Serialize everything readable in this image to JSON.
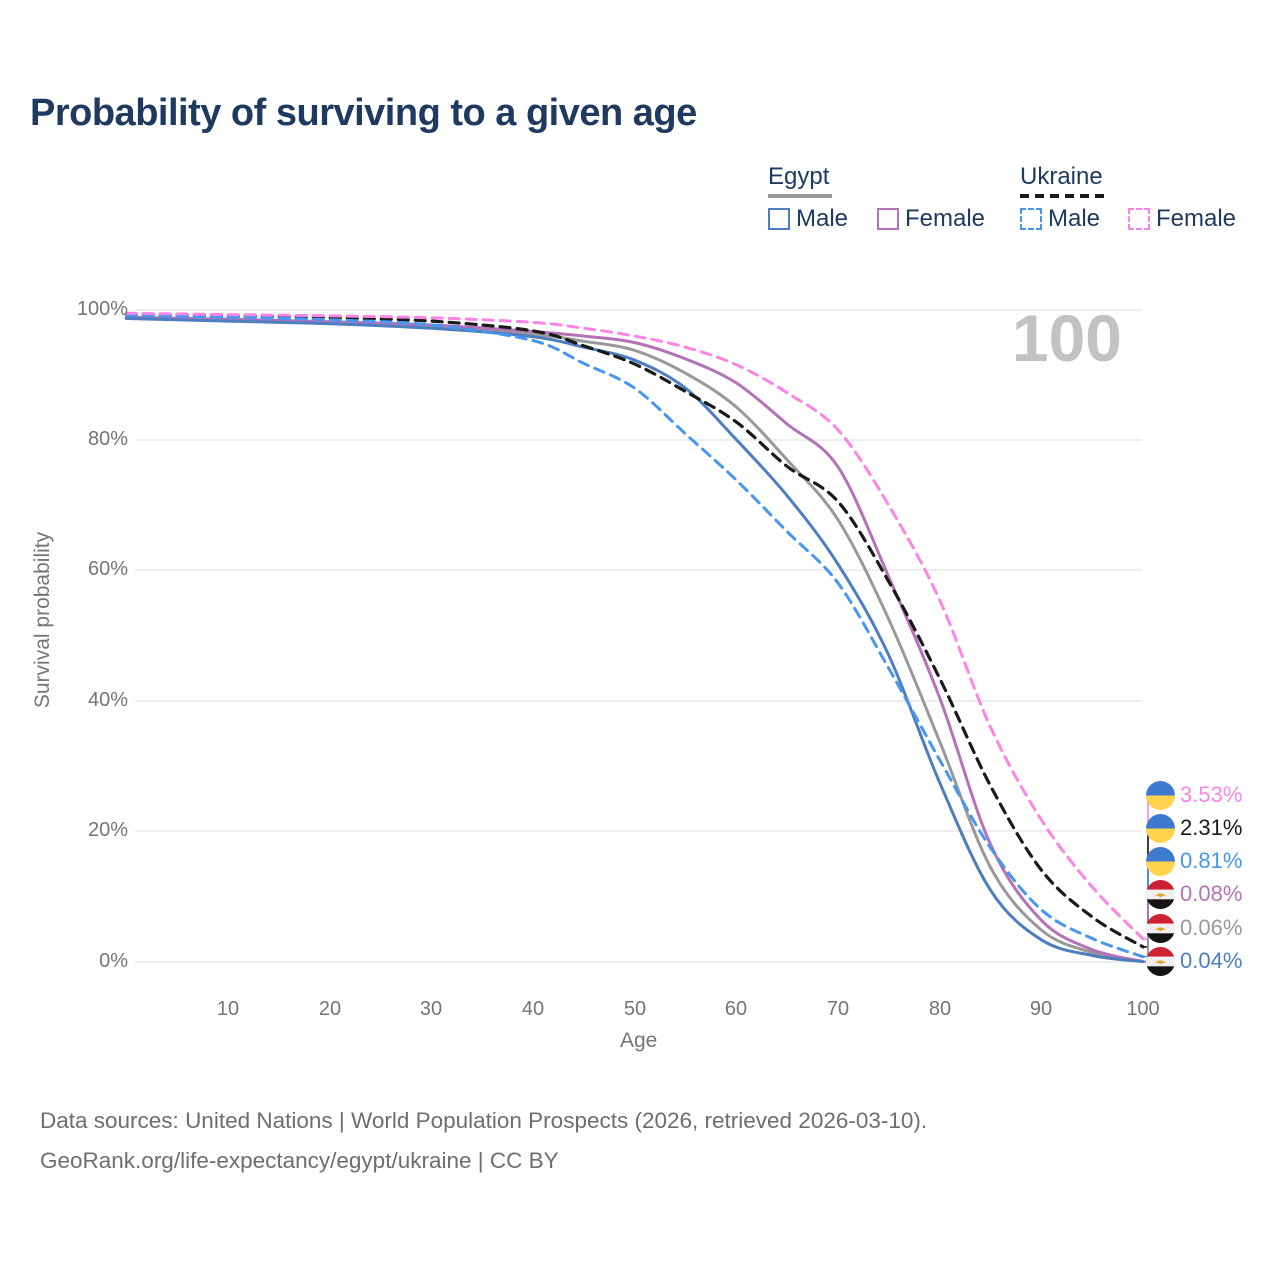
{
  "title": "Probability of surviving to a given age",
  "legend": {
    "groups": [
      {
        "country": "Egypt",
        "underline_style": "solid",
        "underline_color": "#999999",
        "items": [
          {
            "label": "Male",
            "color": "#4d7ec0",
            "dashed": false
          },
          {
            "label": "Female",
            "color": "#b572b8",
            "dashed": false
          }
        ]
      },
      {
        "country": "Ukraine",
        "underline_style": "dashed",
        "underline_color": "#1a1a1a",
        "items": [
          {
            "label": "Male",
            "color": "#4696f2",
            "dashed": true
          },
          {
            "label": "Female",
            "color": "#fb84e4",
            "dashed": true
          }
        ]
      }
    ]
  },
  "chart_data": {
    "type": "line",
    "xlabel": "Age",
    "ylabel": "Survival probability",
    "xlim": [
      0,
      100
    ],
    "ylim": [
      0,
      100
    ],
    "grid": "horizontal",
    "x_tick_labels": [
      "10",
      "20",
      "30",
      "40",
      "50",
      "60",
      "70",
      "80",
      "90",
      "100"
    ],
    "x_tick_values": [
      10,
      20,
      30,
      40,
      50,
      60,
      70,
      80,
      90,
      100
    ],
    "y_tick_labels": [
      "100%",
      "80%",
      "60%",
      "40%",
      "20%",
      "0%"
    ],
    "y_tick_values": [
      100,
      80,
      60,
      40,
      20,
      0
    ],
    "hovered_age_label": "100",
    "ages": [
      0,
      10,
      20,
      30,
      40,
      45,
      50,
      55,
      60,
      65,
      70,
      75,
      80,
      85,
      90,
      95,
      100
    ],
    "series": [
      {
        "name": "Egypt Both sexes",
        "country": "Egypt",
        "sex": "both",
        "style": "solid",
        "color": "#999999",
        "values": [
          98.8,
          98.4,
          98.0,
          97.4,
          96.3,
          95.2,
          93.8,
          90.3,
          85.1,
          77.0,
          67.8,
          52.5,
          33.8,
          14.5,
          4.9,
          1.45,
          0.06
        ]
      },
      {
        "name": "Egypt Female",
        "country": "Egypt",
        "sex": "female",
        "style": "solid",
        "color": "#b572b8",
        "values": [
          98.9,
          98.6,
          98.2,
          97.7,
          96.7,
          96.0,
          95.0,
          92.5,
          88.8,
          82.5,
          75.9,
          59.0,
          40.5,
          18.0,
          6.4,
          1.9,
          0.08
        ]
      },
      {
        "name": "Egypt Male",
        "country": "Egypt",
        "sex": "male",
        "style": "solid",
        "color": "#4d7ec0",
        "values": [
          98.7,
          98.3,
          97.9,
          97.2,
          95.9,
          94.3,
          92.3,
          88.0,
          80.1,
          71.5,
          61.0,
          47.0,
          27.5,
          11.0,
          3.4,
          1.0,
          0.04
        ]
      },
      {
        "name": "Ukraine Both sexes",
        "country": "Ukraine",
        "sex": "both",
        "style": "dashed",
        "color": "#1a1a1a",
        "values": [
          99.35,
          99.1,
          98.8,
          98.3,
          96.8,
          94.5,
          91.7,
          87.5,
          82.8,
          76.0,
          70.6,
          58.3,
          43.5,
          27.0,
          14.1,
          6.9,
          2.31
        ]
      },
      {
        "name": "Ukraine Male",
        "country": "Ukraine",
        "sex": "male",
        "style": "dashed",
        "color": "#4696f2",
        "values": [
          99.2,
          98.9,
          98.5,
          97.7,
          95.3,
          91.8,
          88.0,
          81.0,
          73.9,
          66.0,
          58.1,
          45.0,
          31.0,
          17.5,
          8.0,
          3.6,
          0.81
        ]
      },
      {
        "name": "Ukraine Female",
        "country": "Ukraine",
        "sex": "female",
        "style": "dashed",
        "color": "#fb84e4",
        "values": [
          99.5,
          99.3,
          99.1,
          98.8,
          98.1,
          97.2,
          96.0,
          94.3,
          91.6,
          87.3,
          81.6,
          70.0,
          55.5,
          36.0,
          21.8,
          11.5,
          3.53
        ]
      }
    ],
    "end_labels": [
      {
        "text": "3.53%",
        "color": "#fb84e4",
        "series_index": 5,
        "flag": "ukraine"
      },
      {
        "text": "2.31%",
        "color": "#1a1a1a",
        "series_index": 3,
        "flag": "ukraine"
      },
      {
        "text": "0.81%",
        "color": "#4696f2",
        "series_index": 4,
        "flag": "ukraine"
      },
      {
        "text": "0.08%",
        "color": "#b572b8",
        "series_index": 1,
        "flag": "egypt"
      },
      {
        "text": "0.06%",
        "color": "#999999",
        "series_index": 0,
        "flag": "egypt"
      },
      {
        "text": "0.04%",
        "color": "#4d7ec0",
        "series_index": 2,
        "flag": "egypt"
      }
    ]
  },
  "footer": {
    "line1": "Data sources: United Nations | World Population Prospects (2026, retrieved 2026-03-10).",
    "line2": "GeoRank.org/life-expectancy/egypt/ukraine | CC BY"
  }
}
